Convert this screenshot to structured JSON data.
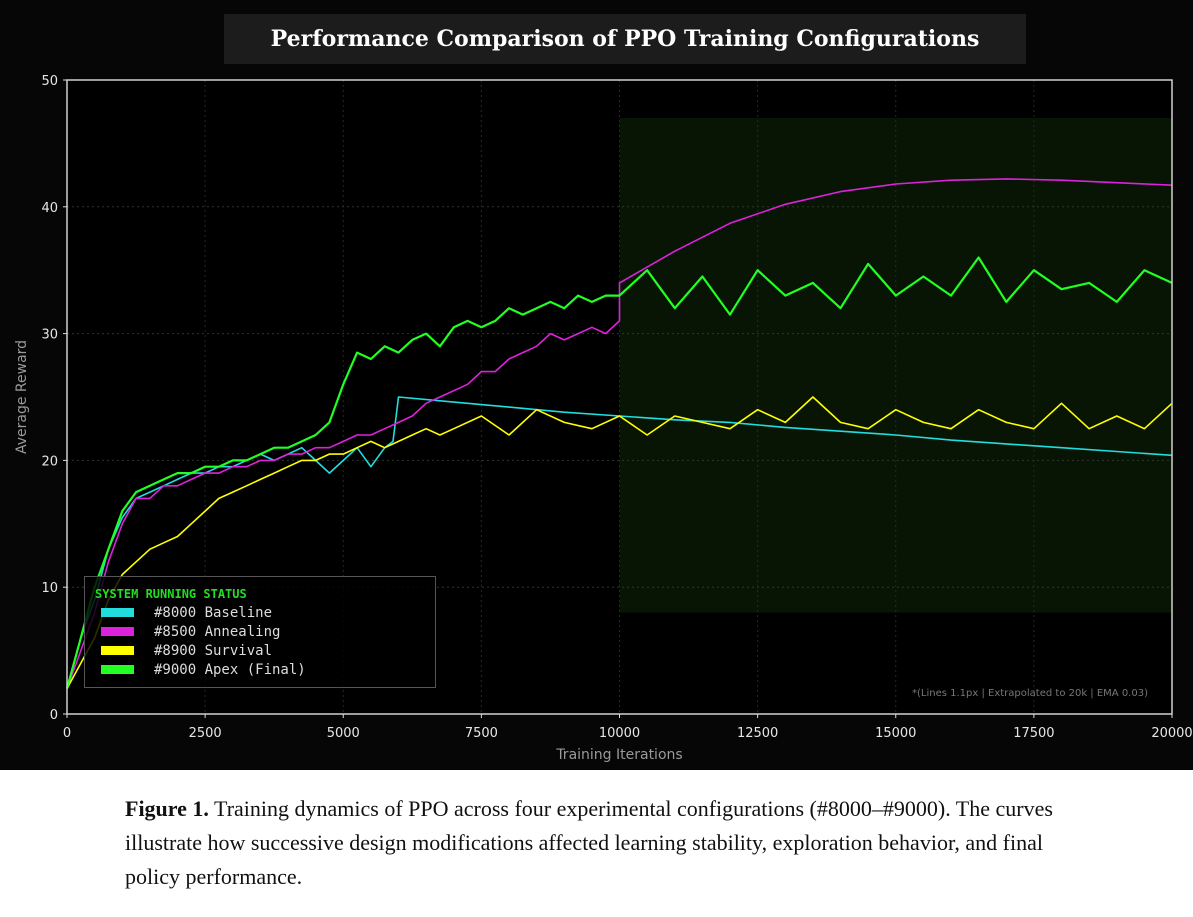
{
  "chart_data": {
    "type": "line",
    "title": "Performance Comparison of PPO Training Configurations",
    "xlabel": "Training Iterations",
    "ylabel": "Average Reward",
    "xlim": [
      0,
      20000
    ],
    "ylim": [
      0,
      50
    ],
    "xticks": [
      0,
      2500,
      5000,
      7500,
      10000,
      12500,
      15000,
      17500,
      20000
    ],
    "yticks": [
      0,
      10,
      20,
      30,
      40,
      50
    ],
    "grid": true,
    "legend": {
      "title": "SYSTEM RUNNING STATUS",
      "placement": "bottom-left"
    },
    "annotation": "*(Lines 1.1px | Extrapolated to 20k | EMA 0.03)",
    "series": [
      {
        "name": "#8000 Baseline",
        "color": "#22dddd",
        "points": [
          [
            0,
            2
          ],
          [
            250,
            6
          ],
          [
            500,
            9
          ],
          [
            750,
            13
          ],
          [
            1000,
            15.5
          ],
          [
            1250,
            17
          ],
          [
            1500,
            17.5
          ],
          [
            1750,
            18
          ],
          [
            2000,
            18.5
          ],
          [
            2250,
            19
          ],
          [
            2500,
            19
          ],
          [
            2750,
            19.5
          ],
          [
            3000,
            19.5
          ],
          [
            3250,
            20
          ],
          [
            3500,
            20.5
          ],
          [
            3750,
            20
          ],
          [
            4000,
            20.5
          ],
          [
            4250,
            21
          ],
          [
            4500,
            20
          ],
          [
            4750,
            19
          ],
          [
            5000,
            20
          ],
          [
            5250,
            21
          ],
          [
            5500,
            19.5
          ],
          [
            5750,
            21
          ],
          [
            5900,
            21.5
          ],
          [
            6000,
            25
          ],
          [
            7000,
            24.6
          ],
          [
            8000,
            24.2
          ],
          [
            9000,
            23.8
          ],
          [
            10000,
            23.5
          ],
          [
            11000,
            23.2
          ],
          [
            12000,
            23
          ],
          [
            13000,
            22.6
          ],
          [
            14000,
            22.3
          ],
          [
            15000,
            22
          ],
          [
            16000,
            21.6
          ],
          [
            17000,
            21.3
          ],
          [
            18000,
            21
          ],
          [
            19000,
            20.7
          ],
          [
            20000,
            20.4
          ]
        ]
      },
      {
        "name": "#8500 Annealing",
        "color": "#dd22dd",
        "points": [
          [
            0,
            2
          ],
          [
            250,
            5
          ],
          [
            500,
            8
          ],
          [
            750,
            12
          ],
          [
            1000,
            15
          ],
          [
            1250,
            17
          ],
          [
            1500,
            17
          ],
          [
            1750,
            18
          ],
          [
            2000,
            18
          ],
          [
            2250,
            18.5
          ],
          [
            2500,
            19
          ],
          [
            2750,
            19
          ],
          [
            3000,
            19.5
          ],
          [
            3250,
            19.5
          ],
          [
            3500,
            20
          ],
          [
            3750,
            20
          ],
          [
            4000,
            20.5
          ],
          [
            4250,
            20.5
          ],
          [
            4500,
            21
          ],
          [
            4750,
            21
          ],
          [
            5000,
            21.5
          ],
          [
            5250,
            22
          ],
          [
            5500,
            22
          ],
          [
            5750,
            22.5
          ],
          [
            6000,
            23
          ],
          [
            6250,
            23.5
          ],
          [
            6500,
            24.5
          ],
          [
            6750,
            25
          ],
          [
            7000,
            25.5
          ],
          [
            7250,
            26
          ],
          [
            7500,
            27
          ],
          [
            7750,
            27
          ],
          [
            8000,
            28
          ],
          [
            8250,
            28.5
          ],
          [
            8500,
            29
          ],
          [
            8750,
            30
          ],
          [
            9000,
            29.5
          ],
          [
            9250,
            30
          ],
          [
            9500,
            30.5
          ],
          [
            9750,
            30
          ],
          [
            10000,
            31
          ],
          [
            10000,
            34
          ],
          [
            11000,
            36.5
          ],
          [
            12000,
            38.7
          ],
          [
            13000,
            40.2
          ],
          [
            14000,
            41.2
          ],
          [
            15000,
            41.8
          ],
          [
            16000,
            42.1
          ],
          [
            17000,
            42.2
          ],
          [
            18000,
            42.1
          ],
          [
            19000,
            41.9
          ],
          [
            20000,
            41.7
          ]
        ]
      },
      {
        "name": "#8900 Survival",
        "color": "#ffff00",
        "points": [
          [
            0,
            2
          ],
          [
            250,
            4
          ],
          [
            500,
            6
          ],
          [
            750,
            9
          ],
          [
            1000,
            11
          ],
          [
            1250,
            12
          ],
          [
            1500,
            13
          ],
          [
            1750,
            13.5
          ],
          [
            2000,
            14
          ],
          [
            2250,
            15
          ],
          [
            2500,
            16
          ],
          [
            2750,
            17
          ],
          [
            3000,
            17.5
          ],
          [
            3250,
            18
          ],
          [
            3500,
            18.5
          ],
          [
            3750,
            19
          ],
          [
            4000,
            19.5
          ],
          [
            4250,
            20
          ],
          [
            4500,
            20
          ],
          [
            4750,
            20.5
          ],
          [
            5000,
            20.5
          ],
          [
            5250,
            21
          ],
          [
            5500,
            21.5
          ],
          [
            5750,
            21
          ],
          [
            6000,
            21.5
          ],
          [
            6250,
            22
          ],
          [
            6500,
            22.5
          ],
          [
            6750,
            22
          ],
          [
            7000,
            22.5
          ],
          [
            7500,
            23.5
          ],
          [
            8000,
            22
          ],
          [
            8500,
            24
          ],
          [
            9000,
            23
          ],
          [
            9500,
            22.5
          ],
          [
            10000,
            23.5
          ],
          [
            10500,
            22
          ],
          [
            11000,
            23.5
          ],
          [
            11500,
            23
          ],
          [
            12000,
            22.5
          ],
          [
            12500,
            24
          ],
          [
            13000,
            23
          ],
          [
            13500,
            25
          ],
          [
            14000,
            23
          ],
          [
            14500,
            22.5
          ],
          [
            15000,
            24
          ],
          [
            15500,
            23
          ],
          [
            16000,
            22.5
          ],
          [
            16500,
            24
          ],
          [
            17000,
            23
          ],
          [
            17500,
            22.5
          ],
          [
            18000,
            24.5
          ],
          [
            18500,
            22.5
          ],
          [
            19000,
            23.5
          ],
          [
            19500,
            22.5
          ],
          [
            20000,
            24.5
          ]
        ]
      },
      {
        "name": "#9000 Apex (Final)",
        "color": "#22ff22",
        "points": [
          [
            0,
            2
          ],
          [
            250,
            6
          ],
          [
            500,
            10
          ],
          [
            750,
            13
          ],
          [
            1000,
            16
          ],
          [
            1250,
            17.5
          ],
          [
            1500,
            18
          ],
          [
            1750,
            18.5
          ],
          [
            2000,
            19
          ],
          [
            2250,
            19
          ],
          [
            2500,
            19.5
          ],
          [
            2750,
            19.5
          ],
          [
            3000,
            20
          ],
          [
            3250,
            20
          ],
          [
            3500,
            20.5
          ],
          [
            3750,
            21
          ],
          [
            4000,
            21
          ],
          [
            4250,
            21.5
          ],
          [
            4500,
            22
          ],
          [
            4750,
            23
          ],
          [
            5000,
            26
          ],
          [
            5250,
            28.5
          ],
          [
            5500,
            28
          ],
          [
            5750,
            29
          ],
          [
            6000,
            28.5
          ],
          [
            6250,
            29.5
          ],
          [
            6500,
            30
          ],
          [
            6750,
            29
          ],
          [
            7000,
            30.5
          ],
          [
            7250,
            31
          ],
          [
            7500,
            30.5
          ],
          [
            7750,
            31
          ],
          [
            8000,
            32
          ],
          [
            8250,
            31.5
          ],
          [
            8500,
            32
          ],
          [
            8750,
            32.5
          ],
          [
            9000,
            32
          ],
          [
            9250,
            33
          ],
          [
            9500,
            32.5
          ],
          [
            9750,
            33
          ],
          [
            10000,
            33
          ],
          [
            10500,
            35
          ],
          [
            11000,
            32
          ],
          [
            11500,
            34.5
          ],
          [
            12000,
            31.5
          ],
          [
            12500,
            35
          ],
          [
            13000,
            33
          ],
          [
            13500,
            34
          ],
          [
            14000,
            32
          ],
          [
            14500,
            35.5
          ],
          [
            15000,
            33
          ],
          [
            15500,
            34.5
          ],
          [
            16000,
            33
          ],
          [
            16500,
            36
          ],
          [
            17000,
            32.5
          ],
          [
            17500,
            35
          ],
          [
            18000,
            33.5
          ],
          [
            18500,
            34
          ],
          [
            19000,
            32.5
          ],
          [
            19500,
            35
          ],
          [
            20000,
            34
          ]
        ]
      }
    ]
  },
  "caption": {
    "label": "Figure 1.",
    "text": " Training dynamics of PPO across four experimental configurations (#8000–#9000). The curves illustrate how successive design modifications affected learning stability, exploration behavior, and final policy performance."
  }
}
